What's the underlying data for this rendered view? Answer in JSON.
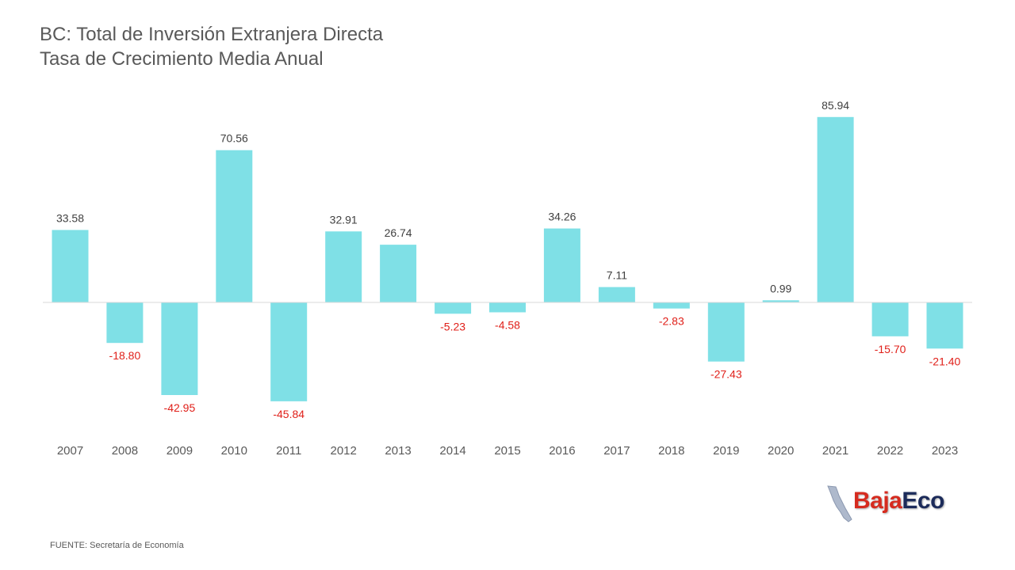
{
  "title": {
    "line1": "BC: Total de Inversión Extranjera Directa",
    "line2": "Tasa de Crecimiento Media Anual"
  },
  "source": "FUENTE: Secretaría de Economía",
  "logo": {
    "part1": "Baja",
    "part2": "Eco"
  },
  "colors": {
    "bar": "#7fe0e6",
    "positive_label": "#404040",
    "negative_label": "#e0201a",
    "axis_label": "#595959",
    "baseline": "#d9d9d9"
  },
  "chart_data": {
    "type": "bar",
    "categories": [
      "2007",
      "2008",
      "2009",
      "2010",
      "2011",
      "2012",
      "2013",
      "2014",
      "2015",
      "2016",
      "2017",
      "2018",
      "2019",
      "2020",
      "2021",
      "2022",
      "2023"
    ],
    "values": [
      33.58,
      -18.8,
      -42.95,
      70.56,
      -45.84,
      32.91,
      26.74,
      -5.23,
      -4.58,
      34.26,
      7.11,
      -2.83,
      -27.43,
      0.99,
      85.94,
      -15.7,
      -21.4
    ],
    "labels": [
      "33.58",
      "-18.80",
      "-42.95",
      "70.56",
      "-45.84",
      "32.91",
      "26.74",
      "-5.23",
      "-4.58",
      "34.26",
      "7.11",
      "-2.83",
      "-27.43",
      "0.99",
      "85.94",
      "-15.70",
      "-21.40"
    ],
    "title": "BC: Total de Inversión Extranjera Directa — Tasa de Crecimiento Media Anual",
    "grid": false,
    "legend": "none"
  }
}
